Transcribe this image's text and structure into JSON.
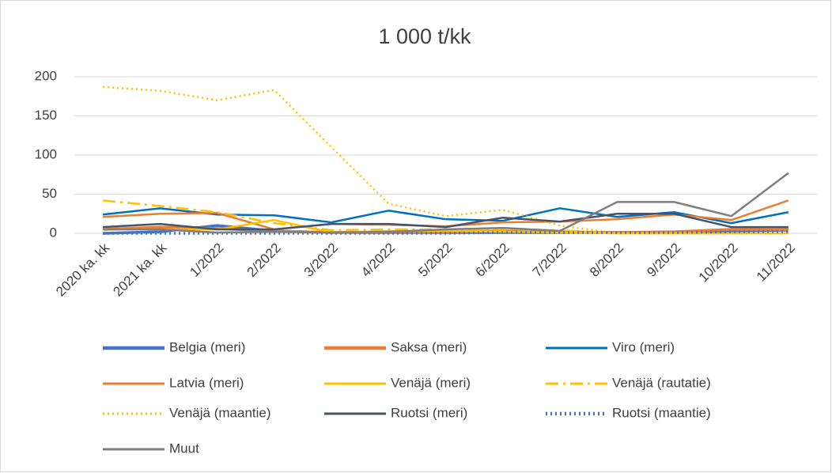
{
  "chart_data": {
    "type": "line",
    "title": "1 000 t/kk",
    "categories": [
      "2020 ka. kk",
      "2021 ka. kk",
      "1/2022",
      "2/2022",
      "3/2022",
      "4/2022",
      "5/2022",
      "6/2022",
      "7/2022",
      "8/2022",
      "9/2022",
      "10/2022",
      "11/2022"
    ],
    "ylim": [
      0,
      200
    ],
    "yticks": [
      0,
      50,
      100,
      150,
      200
    ],
    "grid": true,
    "legend": "bottom",
    "series": [
      {
        "name": "Belgia (meri)",
        "color": "#4472c4",
        "linestyle": "solid",
        "thick": true,
        "values": [
          0,
          2,
          10,
          3,
          1,
          1,
          1,
          1,
          1,
          1,
          1,
          3,
          4
        ]
      },
      {
        "name": "Saksa (meri)",
        "color": "#ed7d31",
        "linestyle": "solid",
        "thick": true,
        "values": [
          5,
          8,
          6,
          3,
          1,
          2,
          2,
          3,
          2,
          1,
          2,
          5,
          5
        ]
      },
      {
        "name": "Viro (meri)",
        "color": "#0070c0",
        "linestyle": "solid",
        "values": [
          24,
          32,
          24,
          23,
          14,
          29,
          18,
          16,
          32,
          21,
          27,
          13,
          27
        ]
      },
      {
        "name": "Latvia (meri)",
        "color": "#ed7d31",
        "linestyle": "solid",
        "values": [
          21,
          25,
          26,
          5,
          12,
          11,
          9,
          14,
          15,
          18,
          24,
          17,
          42
        ]
      },
      {
        "name": "Venäjä (meri)",
        "color": "#ffc000",
        "linestyle": "solid",
        "values": [
          5,
          5,
          5,
          17,
          1,
          3,
          3,
          2,
          1,
          0,
          0,
          0,
          0
        ]
      },
      {
        "name": "Venäjä (rautatie)",
        "color": "#ffc000",
        "linestyle": "dashdot",
        "values": [
          42,
          35,
          27,
          13,
          4,
          5,
          5,
          5,
          4,
          0,
          0,
          0,
          0
        ]
      },
      {
        "name": "Venäjä (maantie)",
        "color": "#ffc000",
        "linestyle": "dot",
        "values": [
          187,
          182,
          170,
          183,
          110,
          38,
          22,
          30,
          10,
          0,
          0,
          0,
          0
        ]
      },
      {
        "name": "Ruotsi (meri)",
        "color": "#44546a",
        "linestyle": "solid",
        "values": [
          8,
          12,
          5,
          5,
          12,
          12,
          8,
          20,
          15,
          25,
          25,
          8,
          8
        ]
      },
      {
        "name": "Ruotsi (maantie)",
        "color": "#4472c4",
        "linestyle": "dot",
        "thick": true,
        "values": [
          0,
          0,
          0,
          0,
          0,
          0,
          0,
          1,
          1,
          1,
          1,
          2,
          2
        ]
      },
      {
        "name": "Muut",
        "color": "#7f7f7f",
        "linestyle": "solid",
        "values": [
          5,
          5,
          1,
          2,
          1,
          2,
          5,
          7,
          3,
          40,
          40,
          22,
          77
        ]
      }
    ]
  }
}
